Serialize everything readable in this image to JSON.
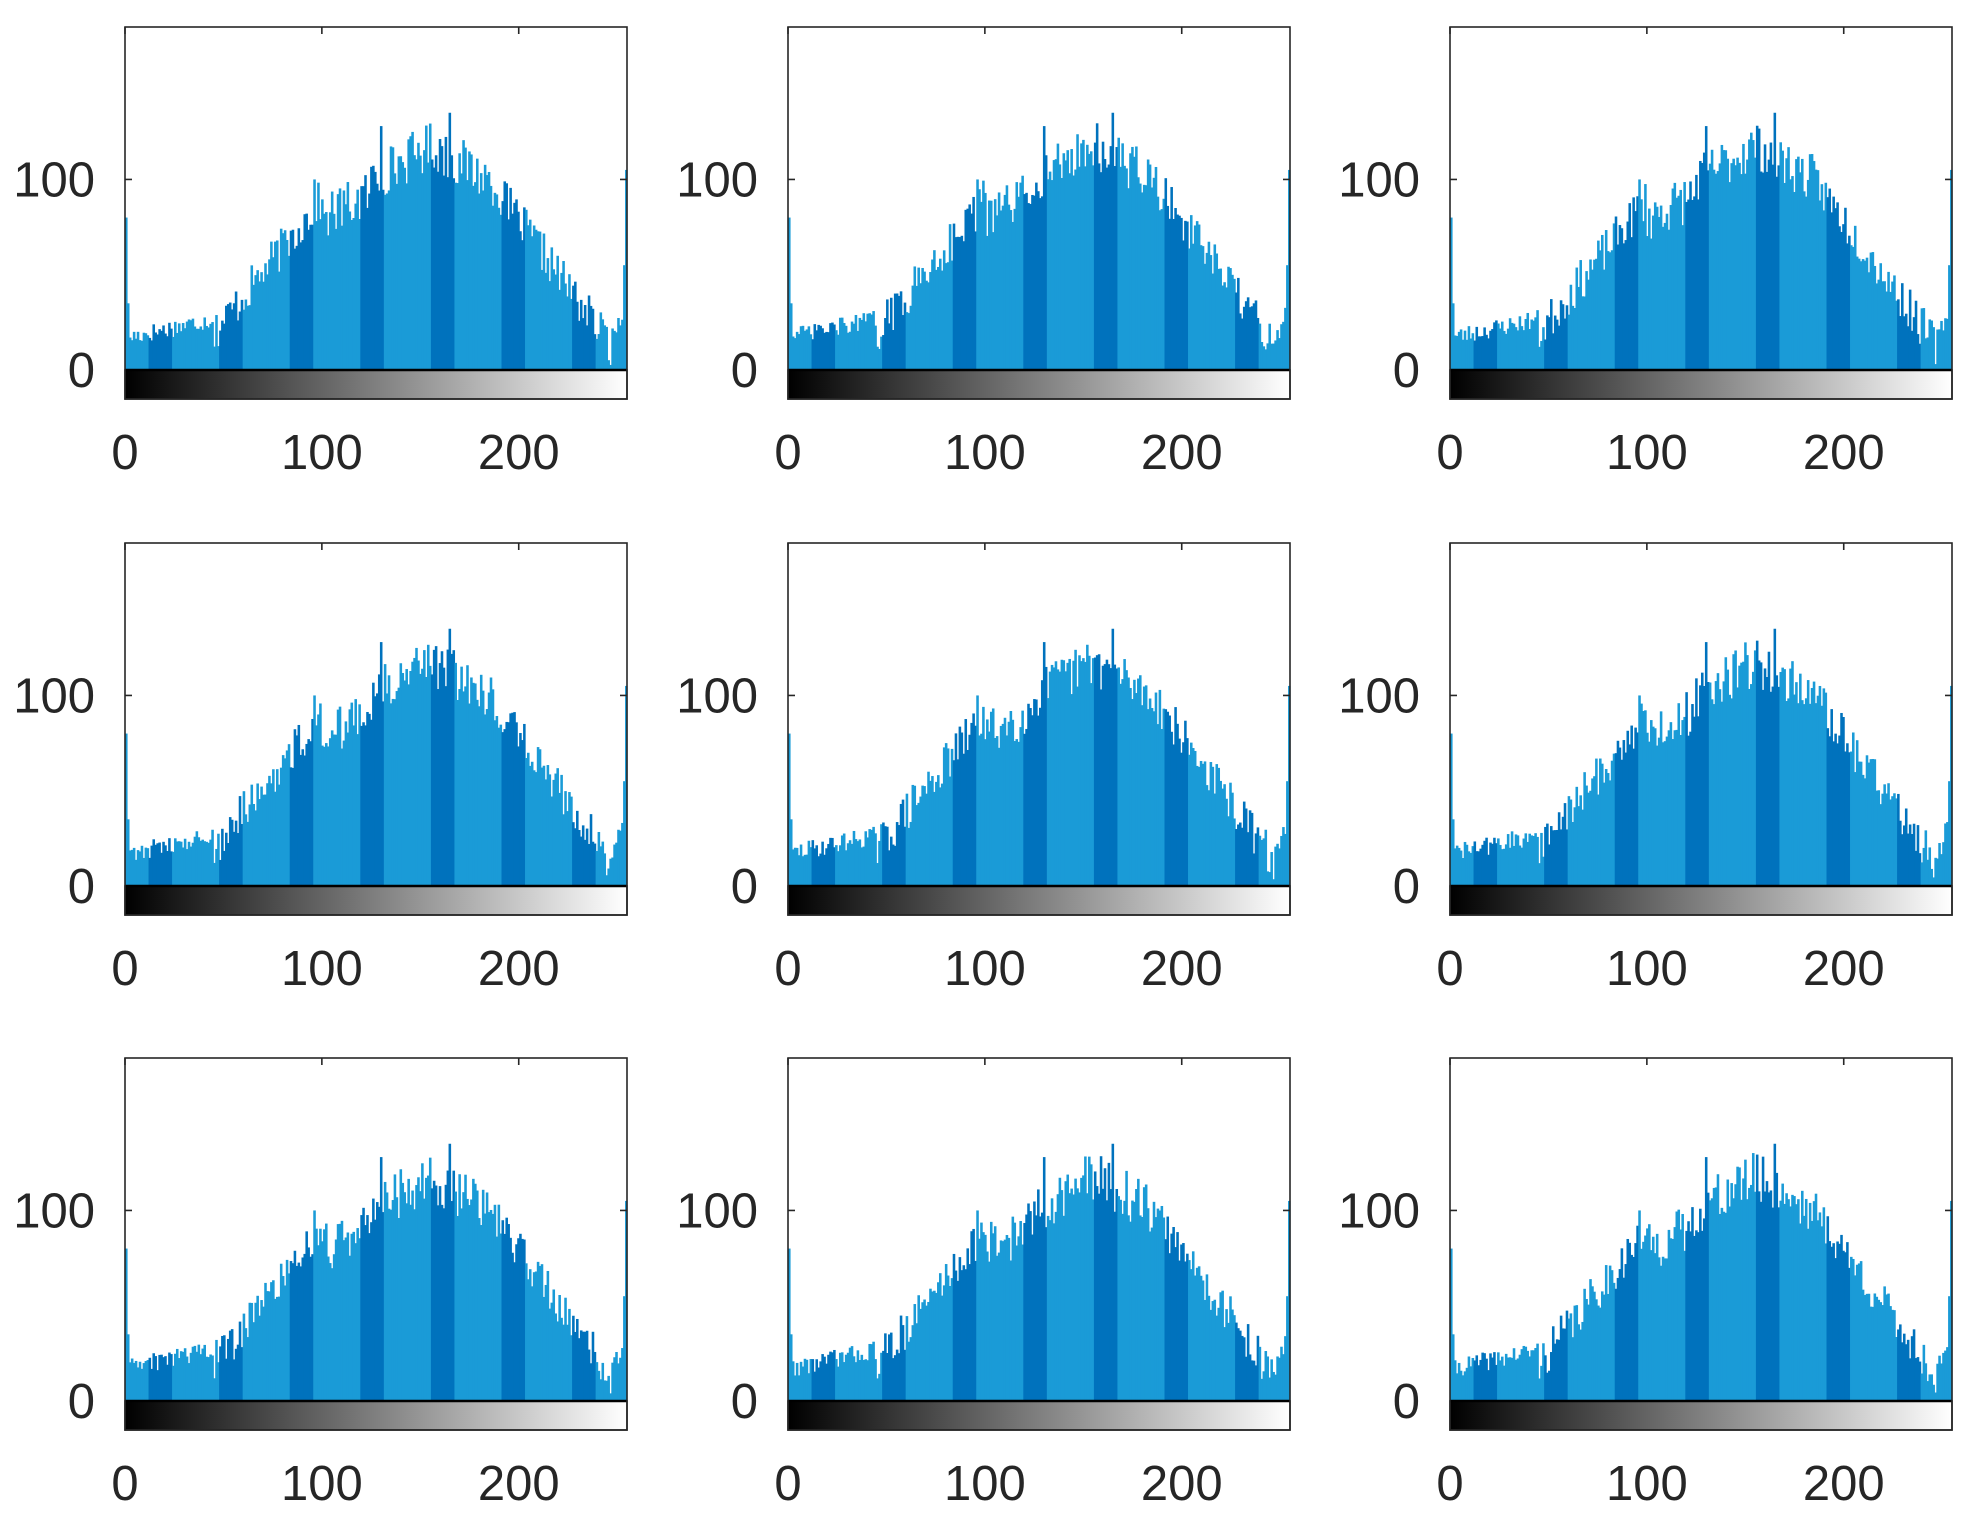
{
  "layout": {
    "rows": 3,
    "cols": 3
  },
  "colors": {
    "bar_light": "#1a9bd7",
    "bar_dark": "#0072bd",
    "axes": "#262626",
    "background": "#ffffff",
    "colorbar_start": "#000000",
    "colorbar_end": "#ffffff"
  },
  "chart_data": [
    {
      "type": "bar",
      "panel": "row1-col1",
      "xlim": [
        0,
        255
      ],
      "ylim": [
        0,
        180
      ],
      "xticks": [
        0,
        100,
        200
      ],
      "xtick_labels": [
        "0",
        "100",
        "200"
      ],
      "yticks": [
        0,
        100
      ],
      "ytick_labels": [
        "0",
        "100"
      ],
      "colorbar": "grayscale 0–255",
      "grid": false,
      "shape": {
        "peak_bin": 165,
        "peak_value": 135,
        "mode_range": [
          130,
          180
        ],
        "left_shoulder": [
          90,
          100
        ],
        "right_tail_min": [
          245,
          10
        ],
        "edge_value_0": 80,
        "edge_value_255": 105
      }
    },
    {
      "type": "bar",
      "panel": "row1-col2",
      "xlim": [
        0,
        255
      ],
      "ylim": [
        0,
        180
      ],
      "xticks": [
        0,
        100,
        200
      ],
      "xtick_labels": [
        "0",
        "100",
        "200"
      ],
      "yticks": [
        0,
        100
      ],
      "ytick_labels": [
        "0",
        "100"
      ],
      "colorbar": "grayscale 0–255",
      "grid": false,
      "shape": {
        "peak_bin": 165,
        "peak_value": 135,
        "mode_range": [
          130,
          180
        ],
        "left_shoulder": [
          90,
          100
        ],
        "right_tail_min": [
          245,
          10
        ],
        "edge_value_0": 80,
        "edge_value_255": 105
      }
    },
    {
      "type": "bar",
      "panel": "row1-col3",
      "xlim": [
        0,
        255
      ],
      "ylim": [
        0,
        180
      ],
      "xticks": [
        0,
        100,
        200
      ],
      "xtick_labels": [
        "0",
        "100",
        "200"
      ],
      "yticks": [
        0,
        100
      ],
      "ytick_labels": [
        "0",
        "100"
      ],
      "colorbar": "grayscale 0–255",
      "grid": false,
      "shape": {
        "peak_bin": 165,
        "peak_value": 135,
        "mode_range": [
          130,
          180
        ],
        "left_shoulder": [
          90,
          100
        ],
        "right_tail_min": [
          245,
          10
        ],
        "edge_value_0": 80,
        "edge_value_255": 105
      }
    },
    {
      "type": "bar",
      "panel": "row2-col1",
      "xlim": [
        0,
        255
      ],
      "ylim": [
        0,
        180
      ],
      "xticks": [
        0,
        100,
        200
      ],
      "xtick_labels": [
        "0",
        "100",
        "200"
      ],
      "yticks": [
        0,
        100
      ],
      "ytick_labels": [
        "0",
        "100"
      ],
      "colorbar": "grayscale 0–255",
      "grid": false,
      "shape": {
        "peak_bin": 165,
        "peak_value": 135,
        "mode_range": [
          130,
          180
        ],
        "left_shoulder": [
          90,
          100
        ],
        "right_tail_min": [
          245,
          10
        ],
        "edge_value_0": 80,
        "edge_value_255": 105
      }
    },
    {
      "type": "bar",
      "panel": "row2-col2",
      "xlim": [
        0,
        255
      ],
      "ylim": [
        0,
        180
      ],
      "xticks": [
        0,
        100,
        200
      ],
      "xtick_labels": [
        "0",
        "100",
        "200"
      ],
      "yticks": [
        0,
        100
      ],
      "ytick_labels": [
        "0",
        "100"
      ],
      "colorbar": "grayscale 0–255",
      "grid": false,
      "shape": {
        "peak_bin": 165,
        "peak_value": 135,
        "mode_range": [
          130,
          180
        ],
        "left_shoulder": [
          90,
          100
        ],
        "right_tail_min": [
          245,
          10
        ],
        "edge_value_0": 80,
        "edge_value_255": 105
      }
    },
    {
      "type": "bar",
      "panel": "row2-col3",
      "xlim": [
        0,
        255
      ],
      "ylim": [
        0,
        180
      ],
      "xticks": [
        0,
        100,
        200
      ],
      "xtick_labels": [
        "0",
        "100",
        "200"
      ],
      "yticks": [
        0,
        100
      ],
      "ytick_labels": [
        "0",
        "100"
      ],
      "colorbar": "grayscale 0–255",
      "grid": false,
      "shape": {
        "peak_bin": 165,
        "peak_value": 135,
        "mode_range": [
          130,
          180
        ],
        "left_shoulder": [
          90,
          100
        ],
        "right_tail_min": [
          245,
          10
        ],
        "edge_value_0": 80,
        "edge_value_255": 105
      }
    },
    {
      "type": "bar",
      "panel": "row3-col1",
      "xlim": [
        0,
        255
      ],
      "ylim": [
        0,
        180
      ],
      "xticks": [
        0,
        100,
        200
      ],
      "xtick_labels": [
        "0",
        "100",
        "200"
      ],
      "yticks": [
        0,
        100
      ],
      "ytick_labels": [
        "0",
        "100"
      ],
      "colorbar": "grayscale 0–255",
      "grid": false,
      "shape": {
        "peak_bin": 165,
        "peak_value": 135,
        "mode_range": [
          130,
          180
        ],
        "left_shoulder": [
          90,
          100
        ],
        "right_tail_min": [
          245,
          10
        ],
        "edge_value_0": 80,
        "edge_value_255": 105
      }
    },
    {
      "type": "bar",
      "panel": "row3-col2",
      "xlim": [
        0,
        255
      ],
      "ylim": [
        0,
        180
      ],
      "xticks": [
        0,
        100,
        200
      ],
      "xtick_labels": [
        "0",
        "100",
        "200"
      ],
      "yticks": [
        0,
        100
      ],
      "ytick_labels": [
        "0",
        "100"
      ],
      "colorbar": "grayscale 0–255",
      "grid": false,
      "shape": {
        "peak_bin": 165,
        "peak_value": 135,
        "mode_range": [
          130,
          180
        ],
        "left_shoulder": [
          90,
          100
        ],
        "right_tail_min": [
          245,
          10
        ],
        "edge_value_0": 80,
        "edge_value_255": 105
      }
    },
    {
      "type": "bar",
      "panel": "row3-col3",
      "xlim": [
        0,
        255
      ],
      "ylim": [
        0,
        180
      ],
      "xticks": [
        0,
        100,
        200
      ],
      "xtick_labels": [
        "0",
        "100",
        "200"
      ],
      "yticks": [
        0,
        100
      ],
      "ytick_labels": [
        "0",
        "100"
      ],
      "colorbar": "grayscale 0–255",
      "grid": false,
      "shape": {
        "peak_bin": 165,
        "peak_value": 135,
        "mode_range": [
          130,
          180
        ],
        "left_shoulder": [
          90,
          100
        ],
        "right_tail_min": [
          245,
          10
        ],
        "edge_value_0": 80,
        "edge_value_255": 105
      }
    }
  ]
}
